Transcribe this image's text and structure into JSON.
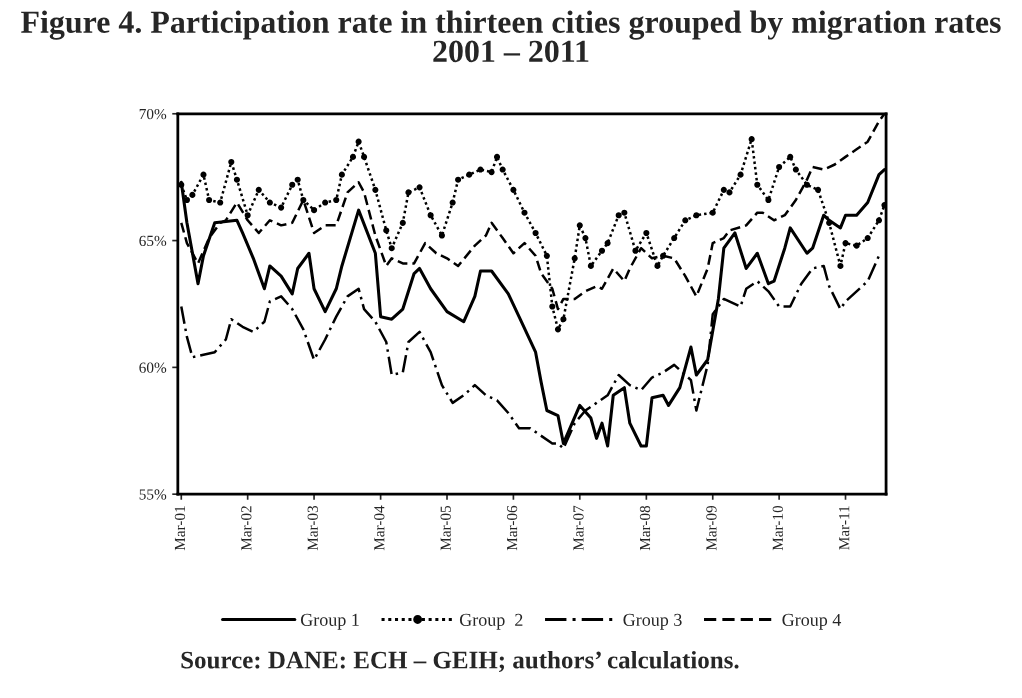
{
  "chart_data": {
    "type": "line",
    "title": "Figure 4. Participation rate in thirteen cities grouped by migration rates\n2001 – 2011",
    "annotations": [
      "Source: DANE: ECH – GEIH; authors’ calculations."
    ],
    "series": [
      {
        "name": "Group 1",
        "color": "#000000",
        "line_style": "solid",
        "marker": "none",
        "x": [
          "2001-03",
          "2001-04",
          "2001-06",
          "2001-07",
          "2001-09",
          "2002-01",
          "2002-02",
          "2002-04",
          "2002-06",
          "2002-07",
          "2002-09",
          "2002-11",
          "2002-12",
          "2003-02",
          "2003-03",
          "2003-05",
          "2003-07",
          "2003-08",
          "2003-11",
          "2004-02",
          "2004-03",
          "2004-05",
          "2004-07",
          "2004-09",
          "2004-10",
          "2004-12",
          "2005-03",
          "2005-06",
          "2005-08",
          "2005-09",
          "2005-11",
          "2006-02",
          "2006-04",
          "2006-07",
          "2006-08",
          "2006-09",
          "2006-11",
          "2006-12",
          "2007-03",
          "2007-05",
          "2007-06",
          "2007-07",
          "2007-08",
          "2007-09",
          "2007-11",
          "2007-12",
          "2008-02",
          "2008-03",
          "2008-04",
          "2008-06",
          "2008-07",
          "2008-09",
          "2008-11",
          "2008-12",
          "2009-02",
          "2009-04",
          "2009-05",
          "2009-07",
          "2009-09",
          "2009-11",
          "2010-01",
          "2010-02",
          "2010-04",
          "2010-05",
          "2010-08",
          "2010-09",
          "2010-11",
          "2010-12",
          "2011-02",
          "2011-03",
          "2011-05",
          "2011-07",
          "2011-09",
          "2011-10"
        ],
        "values": [
          67.3,
          65.7,
          63.3,
          64.4,
          65.7,
          65.8,
          65.3,
          64.3,
          63.1,
          64.0,
          63.6,
          62.9,
          63.9,
          64.5,
          63.1,
          62.2,
          63.1,
          64.0,
          66.2,
          64.5,
          62.0,
          61.9,
          62.3,
          63.7,
          63.9,
          63.1,
          62.2,
          61.8,
          62.8,
          63.8,
          63.8,
          62.9,
          62.0,
          60.6,
          59.4,
          58.3,
          58.1,
          57.0,
          58.5,
          58.0,
          57.2,
          57.8,
          56.9,
          58.9,
          59.2,
          57.8,
          56.9,
          56.9,
          58.8,
          58.9,
          58.5,
          59.2,
          60.8,
          59.7,
          60.3,
          62.7,
          64.7,
          65.3,
          63.9,
          64.5,
          63.3,
          63.4,
          64.7,
          65.5,
          64.5,
          64.7,
          66.0,
          65.8,
          65.5,
          66.0,
          66.0,
          66.5,
          67.6,
          67.8
        ]
      },
      {
        "name": "Group  2",
        "color": "#000000",
        "line_style": "dotted",
        "marker": "circle",
        "x": [
          "2001-03",
          "2001-04",
          "2001-05",
          "2001-07",
          "2001-08",
          "2001-10",
          "2001-12",
          "2002-01",
          "2002-03",
          "2002-05",
          "2002-07",
          "2002-09",
          "2002-11",
          "2002-12",
          "2003-01",
          "2003-03",
          "2003-05",
          "2003-07",
          "2003-08",
          "2003-10",
          "2003-11",
          "2003-12",
          "2004-02",
          "2004-04",
          "2004-05",
          "2004-07",
          "2004-08",
          "2004-10",
          "2004-12",
          "2005-02",
          "2005-04",
          "2005-05",
          "2005-07",
          "2005-09",
          "2005-11",
          "2005-12",
          "2006-01",
          "2006-03",
          "2006-05",
          "2006-07",
          "2006-09",
          "2006-10",
          "2006-11",
          "2006-12",
          "2007-02",
          "2007-03",
          "2007-04",
          "2007-05",
          "2007-07",
          "2007-08",
          "2007-10",
          "2007-11",
          "2008-01",
          "2008-03",
          "2008-05",
          "2008-06",
          "2008-08",
          "2008-10",
          "2008-12",
          "2009-03",
          "2009-05",
          "2009-06",
          "2009-08",
          "2009-10",
          "2009-11",
          "2010-01",
          "2010-03",
          "2010-05",
          "2010-06",
          "2010-08",
          "2010-10",
          "2010-12",
          "2011-02",
          "2011-03",
          "2011-05",
          "2011-07",
          "2011-09",
          "2011-10"
        ],
        "values": [
          67.2,
          66.6,
          66.8,
          67.6,
          66.6,
          66.5,
          68.1,
          67.4,
          66.0,
          67.0,
          66.5,
          66.3,
          67.2,
          67.4,
          66.6,
          66.2,
          66.5,
          66.6,
          67.6,
          68.3,
          68.9,
          68.3,
          67.0,
          65.4,
          64.7,
          65.7,
          66.9,
          67.1,
          66.0,
          65.2,
          66.5,
          67.4,
          67.6,
          67.8,
          67.7,
          68.3,
          67.8,
          67.0,
          66.1,
          65.3,
          64.4,
          62.4,
          61.5,
          61.9,
          64.3,
          65.6,
          65.1,
          64.0,
          64.6,
          64.9,
          66.0,
          66.1,
          64.6,
          65.3,
          64.0,
          64.4,
          65.1,
          65.8,
          66.0,
          66.1,
          67.0,
          66.9,
          67.6,
          69.0,
          67.2,
          66.6,
          67.9,
          68.3,
          67.8,
          67.2,
          67.0,
          65.7,
          64.0,
          64.9,
          64.8,
          65.1,
          65.8,
          66.4
        ]
      },
      {
        "name": "Group 3",
        "color": "#000000",
        "line_style": "dashdot",
        "marker": "none",
        "x": [
          "2001-03",
          "2001-04",
          "2001-05",
          "2001-07",
          "2001-09",
          "2001-11",
          "2001-12",
          "2002-02",
          "2002-04",
          "2002-06",
          "2002-07",
          "2002-09",
          "2002-11",
          "2003-01",
          "2003-03",
          "2003-05",
          "2003-07",
          "2003-09",
          "2003-11",
          "2003-12",
          "2004-02",
          "2004-04",
          "2004-05",
          "2004-07",
          "2004-08",
          "2004-10",
          "2004-12",
          "2005-02",
          "2005-04",
          "2005-06",
          "2005-08",
          "2005-10",
          "2005-12",
          "2006-02",
          "2006-04",
          "2006-06",
          "2006-08",
          "2006-10",
          "2006-11",
          "2006-12",
          "2007-02",
          "2007-04",
          "2007-06",
          "2007-08",
          "2007-10",
          "2007-12",
          "2008-02",
          "2008-04",
          "2008-06",
          "2008-08",
          "2008-11",
          "2008-12",
          "2009-02",
          "2009-03",
          "2009-05",
          "2009-08",
          "2009-09",
          "2009-11",
          "2010-01",
          "2010-03",
          "2010-05",
          "2010-07",
          "2010-09",
          "2010-11",
          "2010-12",
          "2011-02",
          "2011-03",
          "2011-05",
          "2011-07",
          "2011-09"
        ],
        "values": [
          62.4,
          61.2,
          60.4,
          60.5,
          60.6,
          61.1,
          61.9,
          61.6,
          61.4,
          61.8,
          62.6,
          62.8,
          62.3,
          61.5,
          60.3,
          61.1,
          62.0,
          62.8,
          63.1,
          62.3,
          61.8,
          61.0,
          59.7,
          59.8,
          61.0,
          61.4,
          60.6,
          59.3,
          58.6,
          58.9,
          59.3,
          58.9,
          58.7,
          58.2,
          57.6,
          57.6,
          57.3,
          57.0,
          57.0,
          56.8,
          57.8,
          58.3,
          58.6,
          58.9,
          59.7,
          59.3,
          59.1,
          59.6,
          59.8,
          60.1,
          59.5,
          58.3,
          60.1,
          62.1,
          62.7,
          62.4,
          63.1,
          63.4,
          63.0,
          62.4,
          62.4,
          63.3,
          63.9,
          64.0,
          63.2,
          62.3,
          62.6,
          63.0,
          63.4,
          64.4
        ]
      },
      {
        "name": "Group 4",
        "color": "#000000",
        "line_style": "dashed",
        "marker": "none",
        "x": [
          "2001-03",
          "2001-04",
          "2001-06",
          "2001-08",
          "2001-10",
          "2001-11",
          "2002-01",
          "2002-03",
          "2002-05",
          "2002-07",
          "2002-09",
          "2002-11",
          "2003-01",
          "2003-03",
          "2003-05",
          "2003-07",
          "2003-09",
          "2003-11",
          "2003-12",
          "2004-02",
          "2004-04",
          "2004-05",
          "2004-07",
          "2004-09",
          "2004-11",
          "2005-01",
          "2005-03",
          "2005-05",
          "2005-08",
          "2005-10",
          "2005-11",
          "2006-01",
          "2006-03",
          "2006-05",
          "2006-07",
          "2006-08",
          "2006-10",
          "2006-11",
          "2006-12",
          "2007-02",
          "2007-04",
          "2007-06",
          "2007-07",
          "2007-09",
          "2007-11",
          "2007-12",
          "2008-02",
          "2008-04",
          "2008-06",
          "2008-08",
          "2008-10",
          "2008-12",
          "2009-02",
          "2009-03",
          "2009-05",
          "2009-06",
          "2009-09",
          "2009-11",
          "2009-12",
          "2010-02",
          "2010-04",
          "2010-06",
          "2010-08",
          "2010-09",
          "2010-11",
          "2011-01",
          "2011-03",
          "2011-05",
          "2011-07",
          "2011-09",
          "2011-10"
        ],
        "values": [
          65.7,
          64.9,
          64.1,
          65.1,
          65.7,
          65.8,
          66.5,
          65.8,
          65.3,
          65.8,
          65.6,
          65.7,
          66.6,
          65.3,
          65.6,
          65.6,
          66.9,
          67.3,
          66.9,
          65.2,
          64.0,
          64.3,
          64.1,
          64.1,
          64.9,
          64.5,
          64.3,
          64.0,
          64.8,
          65.2,
          65.7,
          65.1,
          64.5,
          64.9,
          64.4,
          63.7,
          63.1,
          62.3,
          62.7,
          62.7,
          63.0,
          63.2,
          63.1,
          63.9,
          63.4,
          63.9,
          64.7,
          64.3,
          64.4,
          64.3,
          63.6,
          62.8,
          63.9,
          64.9,
          65.1,
          65.4,
          65.6,
          66.1,
          66.1,
          65.8,
          66.0,
          66.6,
          67.4,
          67.9,
          67.8,
          68.0,
          68.3,
          68.6,
          68.9,
          69.7,
          70.0
        ]
      }
    ],
    "xlim": [
      "2001-02-10",
      "2011-10-10"
    ],
    "xticks": [
      {
        "value": "2001-03",
        "label": "Mar-01"
      },
      {
        "value": "2002-03",
        "label": "Mar-02"
      },
      {
        "value": "2003-03",
        "label": "Mar-03"
      },
      {
        "value": "2004-03",
        "label": "Mar-04"
      },
      {
        "value": "2005-03",
        "label": "Mar-05"
      },
      {
        "value": "2006-03",
        "label": "Mar-06"
      },
      {
        "value": "2007-03",
        "label": "Mar-07"
      },
      {
        "value": "2008-03",
        "label": "Mar-08"
      },
      {
        "value": "2009-03",
        "label": "Mar-09"
      },
      {
        "value": "2010-03",
        "label": "Mar-10"
      },
      {
        "value": "2011-03",
        "label": "Mar-11"
      }
    ],
    "ylim": [
      55,
      70
    ],
    "yticks": [
      {
        "value": 55,
        "label": "55%"
      },
      {
        "value": 60,
        "label": "60%"
      },
      {
        "value": 65,
        "label": "65%"
      },
      {
        "value": 70,
        "label": "70%"
      }
    ],
    "grid": false,
    "legend": "bottom"
  }
}
